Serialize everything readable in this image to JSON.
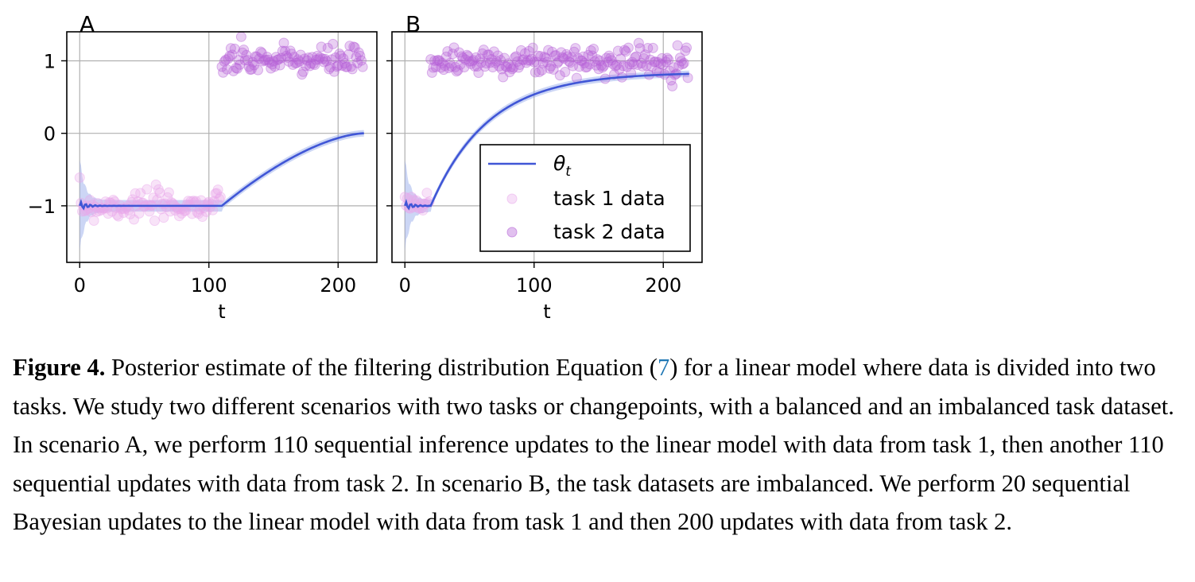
{
  "figure": {
    "legend": {
      "theta_label": "θ",
      "theta_sub": "t",
      "task1": "task 1 data",
      "task2": "task 2 data"
    },
    "colors": {
      "theta_line": "#4056d6",
      "band": "#8fa3e8",
      "task1_points": "#e8a7ea",
      "task2_points": "#b561d6",
      "grid": "#b0b0b0"
    }
  },
  "chart_data": [
    {
      "type": "scatter",
      "panel_label": "A",
      "xlabel": "t",
      "ylabel": "",
      "xlim": [
        -10,
        230
      ],
      "ylim": [
        -1.78,
        1.4
      ],
      "xticks": [
        0,
        100,
        200
      ],
      "yticks": [
        1,
        0,
        -1
      ],
      "ytick_labels": [
        "1",
        "0",
        "−1"
      ],
      "grid": true,
      "changepoint": 110,
      "series": [
        {
          "name": "θt",
          "kind": "line",
          "segments": [
            {
              "t_start": 0,
              "t_end": 110,
              "value": -1.0
            },
            {
              "t_start": 110,
              "t_end": 220,
              "from": -1.0,
              "to": 0.0,
              "shape": "convex"
            }
          ]
        },
        {
          "name": "task 1 data",
          "kind": "points",
          "t_range": [
            0,
            110
          ],
          "mean": -1.0,
          "spread": 0.1,
          "count": 110
        },
        {
          "name": "task 2 data",
          "kind": "points",
          "t_range": [
            110,
            220
          ],
          "mean": 1.0,
          "spread": 0.1,
          "count": 110
        }
      ]
    },
    {
      "type": "scatter",
      "panel_label": "B",
      "xlabel": "t",
      "ylabel": "",
      "xlim": [
        -10,
        230
      ],
      "ylim": [
        -1.78,
        1.4
      ],
      "xticks": [
        0,
        100,
        200
      ],
      "yticks": [
        1,
        0,
        -1
      ],
      "grid": true,
      "legend": "lower-right",
      "changepoint": 20,
      "series": [
        {
          "name": "θt",
          "kind": "line",
          "segments": [
            {
              "t_start": 0,
              "t_end": 20,
              "value": -1.0
            },
            {
              "t_start": 20,
              "t_end": 220,
              "from": -1.0,
              "to": 0.82,
              "shape": "saturating"
            }
          ]
        },
        {
          "name": "task 1 data",
          "kind": "points",
          "t_range": [
            0,
            20
          ],
          "mean": -1.0,
          "spread": 0.1,
          "count": 20
        },
        {
          "name": "task 2 data",
          "kind": "points",
          "t_range": [
            20,
            220
          ],
          "mean": 1.0,
          "spread": 0.1,
          "count": 200
        }
      ]
    }
  ],
  "caption": {
    "label": "Figure 4.",
    "lines": [
      "Posterior estimate of the filtering distribution Equation (",
      "7",
      ") for a linear model where data is divided into two tasks. We study two different scenarios with two tasks or changepoints, with a balanced and an imbalanced task dataset. In scenario A, we perform 110 sequential inference updates to the linear model with data from task 1, then another 110 sequential updates with data from task 2. In scenario B, the task datasets are imbalanced. We perform 20 sequential Bayesian updates to the linear model with data from task 1 and then 200 updates with data from task 2."
    ]
  }
}
